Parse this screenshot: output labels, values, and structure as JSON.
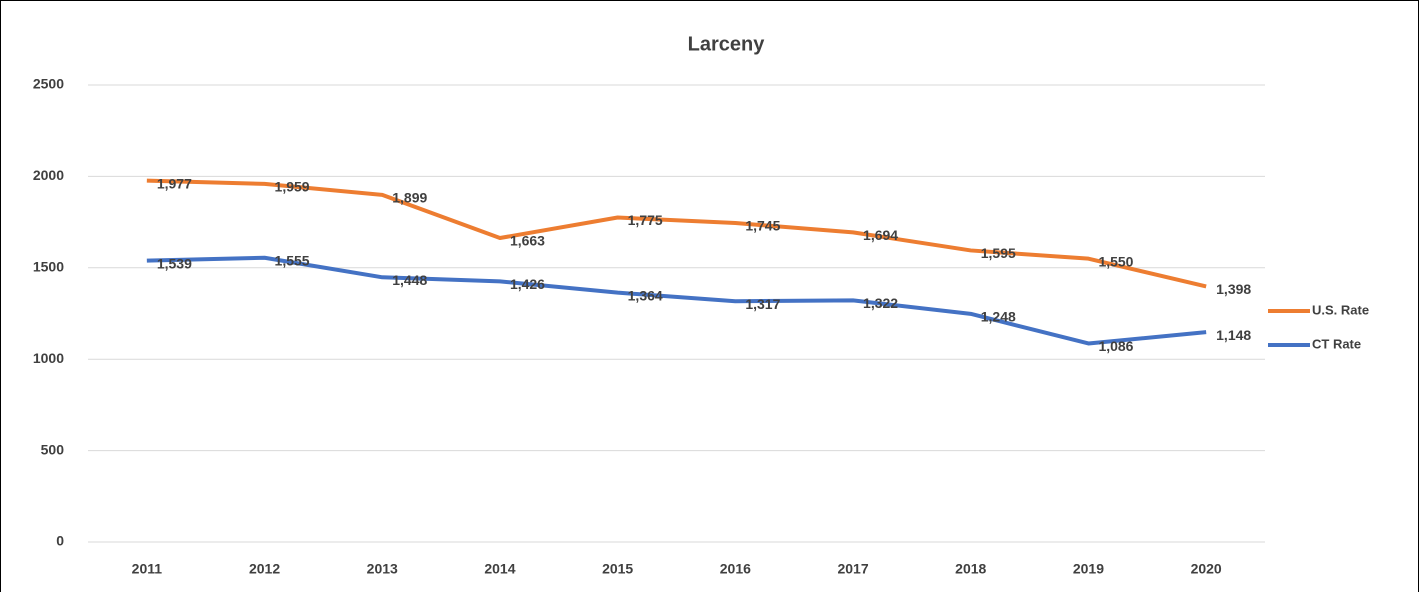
{
  "chart_data": {
    "type": "line",
    "title": "Larceny",
    "categories": [
      "2011",
      "2012",
      "2013",
      "2014",
      "2015",
      "2016",
      "2017",
      "2018",
      "2019",
      "2020"
    ],
    "series": [
      {
        "name": "U.S. Rate",
        "color": "#ed7d31",
        "values": [
          1977,
          1959,
          1899,
          1663,
          1775,
          1745,
          1694,
          1595,
          1550,
          1398
        ],
        "value_labels": [
          "1,977",
          "1,959",
          "1,899",
          "1,663",
          "1,775",
          "1,745",
          "1,694",
          "1,595",
          "1,550",
          "1,398"
        ]
      },
      {
        "name": "CT Rate",
        "color": "#4472c4",
        "values": [
          1539,
          1555,
          1448,
          1426,
          1364,
          1317,
          1322,
          1248,
          1086,
          1148
        ],
        "value_labels": [
          "1,539",
          "1,555",
          "1,448",
          "1,426",
          "1,364",
          "1,317",
          "1,322",
          "1,248",
          "1,086",
          "1,148"
        ]
      }
    ],
    "ylim": [
      0,
      2500
    ],
    "yticks": [
      0,
      500,
      1000,
      1500,
      2000,
      2500
    ],
    "grid": true,
    "legend": "right"
  }
}
